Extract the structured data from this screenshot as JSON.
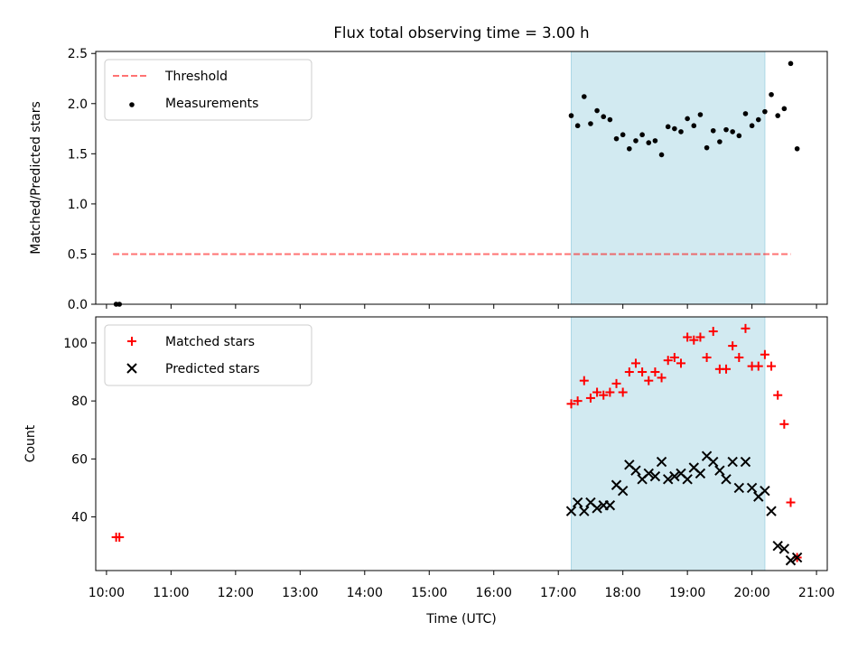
{
  "title": "Flux total observing time = 3.00 h",
  "chart_data": [
    {
      "type": "scatter",
      "panel": "top",
      "ylabel": "Matched/Predicted stars",
      "xlabel": "",
      "xlim": [
        "09:50",
        "21:10"
      ],
      "ylim": [
        0,
        2.52
      ],
      "yticks": [
        "0.0",
        "0.5",
        "1.0",
        "1.5",
        "2.0",
        "2.5"
      ],
      "ytick_values": [
        0,
        0.5,
        1.0,
        1.5,
        2.0,
        2.5
      ],
      "legend_position": "upper-left",
      "shaded_interval": [
        "17:12",
        "20:12"
      ],
      "shaded_color": "#add8e6",
      "series": [
        {
          "name": "Threshold",
          "kind": "dashed-line",
          "color": "#ff0000",
          "x": [
            "10:06",
            "20:36"
          ],
          "y": [
            0.5,
            0.5
          ]
        },
        {
          "name": "Measurements",
          "kind": "dot",
          "color": "#000000",
          "x": [
            "10:09",
            "10:12",
            "17:12",
            "17:18",
            "17:24",
            "17:30",
            "17:36",
            "17:42",
            "17:48",
            "17:54",
            "18:00",
            "18:06",
            "18:12",
            "18:18",
            "18:24",
            "18:30",
            "18:36",
            "18:42",
            "18:48",
            "18:54",
            "19:00",
            "19:06",
            "19:12",
            "19:18",
            "19:24",
            "19:30",
            "19:36",
            "19:42",
            "19:48",
            "19:54",
            "20:00",
            "20:06",
            "20:12",
            "20:18",
            "20:24",
            "20:30",
            "20:36",
            "20:42"
          ],
          "y": [
            0,
            0,
            1.88,
            1.78,
            2.07,
            1.8,
            1.93,
            1.87,
            1.84,
            1.65,
            1.69,
            1.55,
            1.63,
            1.69,
            1.61,
            1.63,
            1.49,
            1.77,
            1.75,
            1.72,
            1.85,
            1.78,
            1.89,
            1.56,
            1.73,
            1.62,
            1.74,
            1.72,
            1.68,
            1.9,
            1.78,
            1.84,
            1.92,
            2.09,
            1.88,
            1.95,
            2.4,
            1.55
          ]
        }
      ]
    },
    {
      "type": "scatter",
      "panel": "bottom",
      "ylabel": "Count",
      "xlabel": "Time (UTC)",
      "xlim": [
        "09:50",
        "21:10"
      ],
      "ylim": [
        21.5,
        109
      ],
      "xticks": [
        "10:00",
        "11:00",
        "12:00",
        "13:00",
        "14:00",
        "15:00",
        "16:00",
        "17:00",
        "18:00",
        "19:00",
        "20:00",
        "21:00"
      ],
      "yticks": [
        "40",
        "60",
        "80",
        "100"
      ],
      "ytick_values": [
        40,
        60,
        80,
        100
      ],
      "legend_position": "upper-left",
      "shaded_interval": [
        "17:12",
        "20:12"
      ],
      "shaded_color": "#add8e6",
      "series": [
        {
          "name": "Matched stars",
          "kind": "plus",
          "color": "#ff0000",
          "x": [
            "10:09",
            "10:12",
            "17:12",
            "17:18",
            "17:24",
            "17:30",
            "17:36",
            "17:42",
            "17:48",
            "17:54",
            "18:00",
            "18:06",
            "18:12",
            "18:18",
            "18:24",
            "18:30",
            "18:36",
            "18:42",
            "18:48",
            "18:54",
            "19:00",
            "19:06",
            "19:12",
            "19:18",
            "19:24",
            "19:30",
            "19:36",
            "19:42",
            "19:48",
            "19:54",
            "20:00",
            "20:06",
            "20:12",
            "20:18",
            "20:24",
            "20:30",
            "20:36",
            "20:42"
          ],
          "y": [
            33,
            33,
            79,
            80,
            87,
            81,
            83,
            82,
            83,
            86,
            83,
            90,
            93,
            90,
            87,
            90,
            88,
            94,
            95,
            93,
            102,
            101,
            102,
            95,
            104,
            91,
            91,
            99,
            95,
            105,
            92,
            92,
            96,
            92,
            82,
            72,
            45,
            26
          ]
        },
        {
          "name": "Predicted stars",
          "kind": "x",
          "color": "#000000",
          "x": [
            "17:12",
            "17:18",
            "17:24",
            "17:30",
            "17:36",
            "17:42",
            "17:48",
            "17:54",
            "18:00",
            "18:06",
            "18:12",
            "18:18",
            "18:24",
            "18:30",
            "18:36",
            "18:42",
            "18:48",
            "18:54",
            "19:00",
            "19:06",
            "19:12",
            "19:18",
            "19:24",
            "19:30",
            "19:36",
            "19:42",
            "19:48",
            "19:54",
            "20:00",
            "20:06",
            "20:12",
            "20:18",
            "20:24",
            "20:30",
            "20:36",
            "20:42"
          ],
          "y": [
            42,
            45,
            42,
            45,
            43,
            44,
            44,
            51,
            49,
            58,
            56,
            53,
            55,
            54,
            59,
            53,
            54,
            55,
            53,
            57,
            55,
            61,
            59,
            56,
            53,
            59,
            50,
            59,
            50,
            47,
            49,
            42,
            30,
            29,
            25,
            26
          ]
        }
      ]
    }
  ]
}
